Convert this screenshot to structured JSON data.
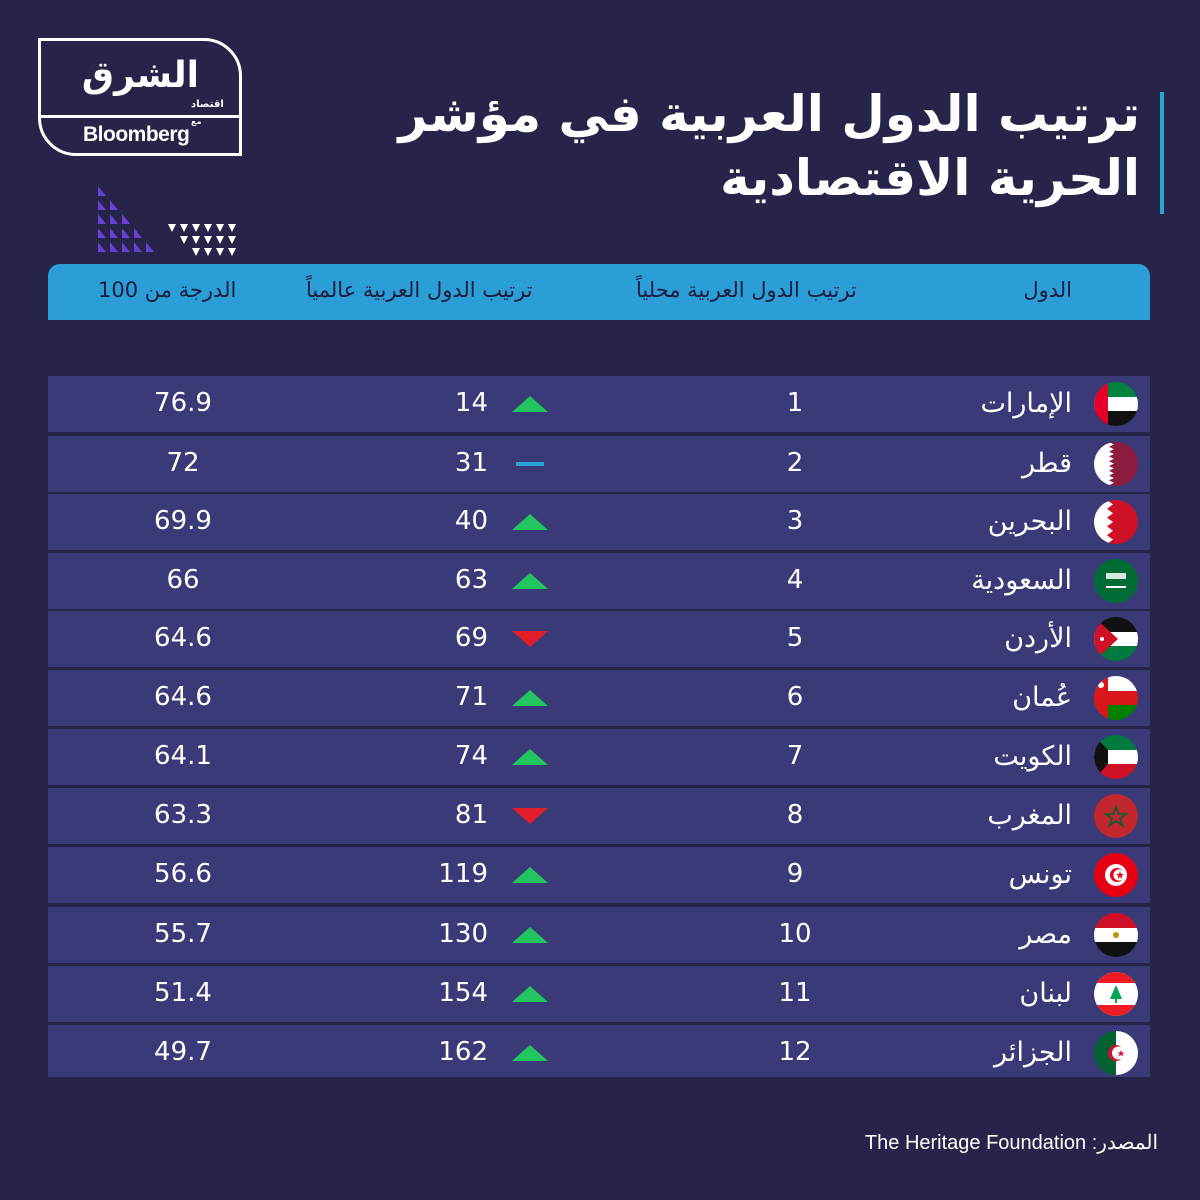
{
  "logo": {
    "arabic": "الشرق",
    "arabic_sub": "اقتصاد",
    "with": "مع",
    "bloomberg": "Bloomberg"
  },
  "title": {
    "line1": "ترتيب الدول العربية في مؤشر",
    "line2": "الحرية الاقتصادية"
  },
  "colors": {
    "background": "#272449",
    "header": "#2b9ed8",
    "row": "#3a3a78",
    "up": "#22c55e",
    "down": "#e11d2a",
    "same": "#2aa6d6"
  },
  "chart_data": {
    "type": "table",
    "columns": [
      "الدول",
      "ترتيب الدول العربية محلياً",
      "ترتيب الدول العربية عالمياً",
      "الدرجة من 100"
    ],
    "rows": [
      {
        "country": "الإمارات",
        "flag": "uae-flag",
        "local": "1",
        "global": "14",
        "change": "up",
        "score": "76.9"
      },
      {
        "country": "قطر",
        "flag": "qatar-flag",
        "local": "2",
        "global": "31",
        "change": "same",
        "score": "72"
      },
      {
        "country": "البحرين",
        "flag": "bahrain-flag",
        "local": "3",
        "global": "40",
        "change": "up",
        "score": "69.9"
      },
      {
        "country": "السعودية",
        "flag": "saudi-flag",
        "local": "4",
        "global": "63",
        "change": "up",
        "score": "66"
      },
      {
        "country": "الأردن",
        "flag": "jordan-flag",
        "local": "5",
        "global": "69",
        "change": "down",
        "score": "64.6"
      },
      {
        "country": "عُمان",
        "flag": "oman-flag",
        "local": "6",
        "global": "71",
        "change": "up",
        "score": "64.6"
      },
      {
        "country": "الكويت",
        "flag": "kuwait-flag",
        "local": "7",
        "global": "74",
        "change": "up",
        "score": "64.1"
      },
      {
        "country": "المغرب",
        "flag": "morocco-flag",
        "local": "8",
        "global": "81",
        "change": "down",
        "score": "63.3"
      },
      {
        "country": "تونس",
        "flag": "tunisia-flag",
        "local": "9",
        "global": "119",
        "change": "up",
        "score": "56.6"
      },
      {
        "country": "مصر",
        "flag": "egypt-flag",
        "local": "10",
        "global": "130",
        "change": "up",
        "score": "55.7"
      },
      {
        "country": "لبنان",
        "flag": "lebanon-flag",
        "local": "11",
        "global": "154",
        "change": "up",
        "score": "51.4"
      },
      {
        "country": "الجزائر",
        "flag": "algeria-flag",
        "local": "12",
        "global": "162",
        "change": "up",
        "score": "49.7"
      }
    ]
  },
  "source": "المصدر: The Heritage Foundation"
}
